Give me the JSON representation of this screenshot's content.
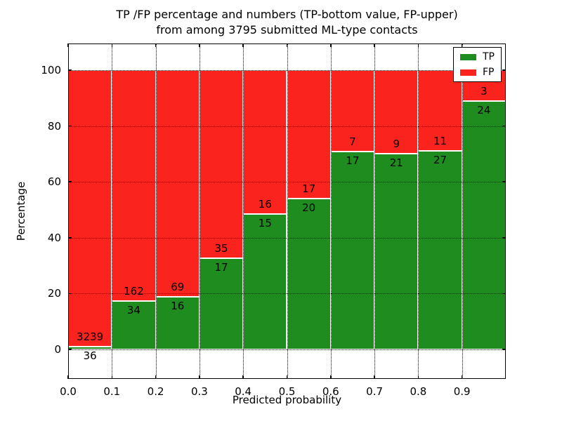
{
  "title": {
    "line1": "TP /FP percentage and numbers (TP-bottom value, FP-upper)",
    "line2": "from among 3795 submitted ML-type contacts"
  },
  "axes": {
    "xlabel": "Predicted probability",
    "ylabel": "Percentage",
    "xtick_labels": [
      "0.0",
      "0.1",
      "0.2",
      "0.3",
      "0.4",
      "0.5",
      "0.6",
      "0.7",
      "0.8",
      "0.9"
    ],
    "ytick_labels": [
      "0",
      "20",
      "40",
      "60",
      "80",
      "100"
    ]
  },
  "legend": {
    "entries": [
      {
        "label": "TP",
        "color": "#1e8c1e"
      },
      {
        "label": "FP",
        "color": "#fb231d"
      }
    ]
  },
  "chart_data": {
    "type": "bar",
    "stacked": true,
    "normalized": "each 0.1 probability bin scaled to 100%",
    "title": "TP /FP percentage and numbers (TP-bottom value, FP-upper) from among 3795 submitted ML-type contacts",
    "xlabel": "Predicted probability",
    "ylabel": "Percentage",
    "bin_edges": [
      0.0,
      0.1,
      0.2,
      0.3,
      0.4,
      0.5,
      0.6,
      0.7,
      0.8,
      0.9,
      1.0
    ],
    "categories": [
      "0.0-0.1",
      "0.1-0.2",
      "0.2-0.3",
      "0.3-0.4",
      "0.4-0.5",
      "0.5-0.6",
      "0.6-0.7",
      "0.7-0.8",
      "0.8-0.9",
      "0.9-1.0"
    ],
    "series": [
      {
        "name": "TP",
        "color": "#1e8c1e",
        "counts": [
          36,
          34,
          16,
          17,
          15,
          20,
          17,
          21,
          27,
          24
        ],
        "percent": [
          1.1,
          17.3,
          18.8,
          32.7,
          48.4,
          54.1,
          70.8,
          70.0,
          71.1,
          88.9
        ]
      },
      {
        "name": "FP",
        "color": "#fb231d",
        "counts": [
          3239,
          162,
          69,
          35,
          16,
          17,
          7,
          9,
          11,
          3
        ],
        "percent": [
          98.9,
          82.7,
          81.2,
          67.3,
          51.6,
          45.9,
          29.2,
          30.0,
          28.9,
          11.1
        ]
      }
    ],
    "total_contacts": 3795,
    "xlim": [
      0.0,
      1.0
    ],
    "ylim": [
      -10,
      110
    ],
    "grid": "dotted both axes",
    "legend_position": "upper right"
  }
}
